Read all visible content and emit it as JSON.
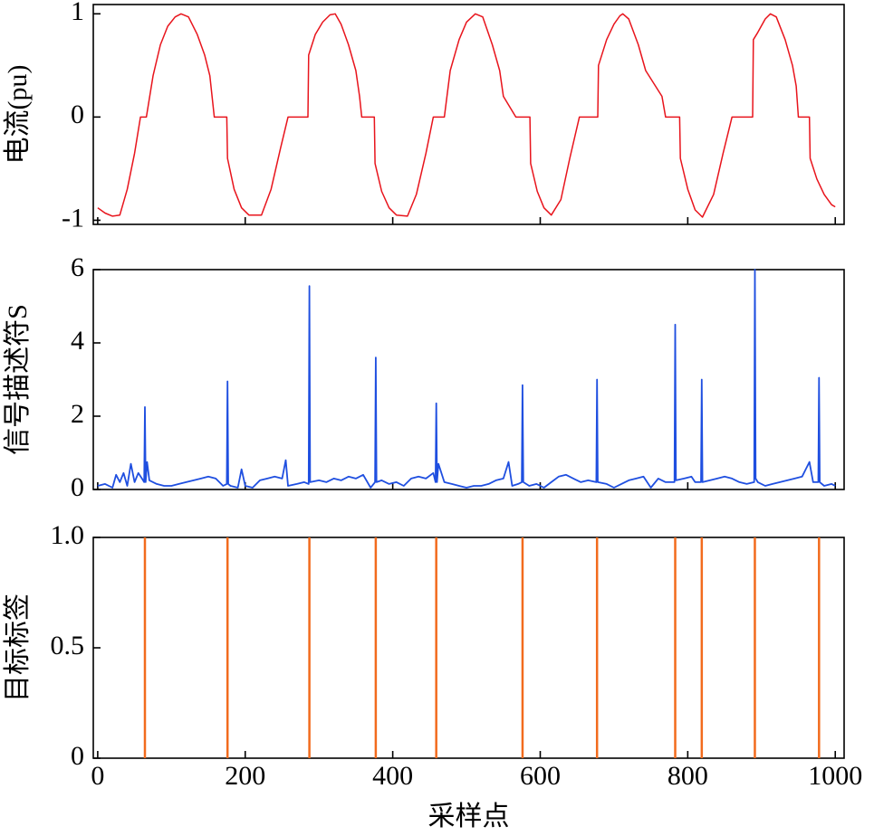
{
  "chart_data": [
    {
      "type": "line",
      "ylabel": "电流(pu)",
      "xlim": [
        -6,
        1012
      ],
      "xticks": [
        0,
        200,
        400,
        600,
        800,
        1000
      ],
      "ylim": [
        -1.04,
        1.09
      ],
      "yticks": [
        -1,
        0,
        1
      ],
      "color": "#e8141c",
      "x": [
        0,
        10,
        20,
        30,
        40,
        50,
        58,
        66,
        75,
        85,
        95,
        105,
        113,
        123,
        135,
        145,
        152,
        158,
        175,
        176,
        185,
        195,
        205,
        222,
        235,
        248,
        258,
        285,
        286,
        295,
        305,
        315,
        322,
        330,
        340,
        350,
        355,
        358,
        375,
        376,
        385,
        395,
        405,
        420,
        432,
        445,
        455,
        470,
        478,
        490,
        500,
        512,
        522,
        535,
        545,
        550,
        567,
        586,
        587,
        596,
        605,
        615,
        628,
        640,
        653,
        678,
        679,
        690,
        700,
        708,
        712,
        720,
        733,
        743,
        765,
        770,
        789,
        790,
        800,
        810,
        820,
        835,
        848,
        860,
        888,
        889,
        895,
        905,
        912,
        920,
        932,
        942,
        947,
        950,
        965,
        966,
        975,
        985,
        995,
        1000
      ],
      "values": [
        -0.88,
        -0.93,
        -0.96,
        -0.95,
        -0.7,
        -0.35,
        0,
        0,
        0.4,
        0.7,
        0.88,
        0.97,
        1.0,
        0.97,
        0.8,
        0.6,
        0.4,
        0,
        0,
        -0.4,
        -0.7,
        -0.88,
        -0.95,
        -0.95,
        -0.7,
        -0.3,
        0,
        0,
        0.6,
        0.8,
        0.92,
        0.99,
        1.0,
        0.9,
        0.7,
        0.45,
        0.2,
        0,
        0,
        -0.45,
        -0.72,
        -0.88,
        -0.95,
        -0.96,
        -0.75,
        -0.35,
        0,
        0,
        0.45,
        0.75,
        0.92,
        1.0,
        0.97,
        0.7,
        0.45,
        0.2,
        0,
        0,
        -0.45,
        -0.72,
        -0.88,
        -0.95,
        -0.8,
        -0.4,
        0,
        0,
        0.5,
        0.75,
        0.9,
        0.98,
        1.0,
        0.95,
        0.7,
        0.45,
        0.2,
        0,
        0,
        -0.4,
        -0.7,
        -0.9,
        -0.97,
        -0.75,
        -0.35,
        0,
        0,
        0.75,
        0.82,
        0.95,
        1.0,
        0.97,
        0.75,
        0.5,
        0.3,
        0,
        0,
        -0.4,
        -0.6,
        -0.75,
        -0.85,
        -0.87
      ]
    },
    {
      "type": "line",
      "ylabel": "信号描述符S",
      "xlim": [
        -6,
        1012
      ],
      "xticks": [
        0,
        200,
        400,
        600,
        800,
        1000
      ],
      "ylim": [
        0,
        6
      ],
      "yticks": [
        0,
        2,
        4,
        6
      ],
      "color": "#1f4fe0",
      "x": [
        0,
        10,
        20,
        25,
        30,
        35,
        40,
        45,
        50,
        55,
        60,
        63,
        64,
        65,
        67,
        70,
        80,
        90,
        100,
        110,
        120,
        130,
        140,
        150,
        160,
        170,
        175,
        176,
        177,
        180,
        190,
        195,
        200,
        210,
        220,
        230,
        240,
        250,
        255,
        258,
        270,
        280,
        286,
        287,
        288,
        300,
        310,
        320,
        330,
        340,
        350,
        360,
        370,
        376,
        377,
        378,
        385,
        395,
        405,
        415,
        425,
        435,
        445,
        455,
        458,
        459,
        460,
        462,
        470,
        480,
        490,
        500,
        510,
        520,
        530,
        540,
        550,
        557,
        562,
        570,
        575,
        576,
        577,
        585,
        595,
        605,
        615,
        625,
        635,
        645,
        655,
        665,
        676,
        677,
        678,
        690,
        700,
        710,
        720,
        730,
        740,
        750,
        760,
        770,
        782,
        783,
        784,
        795,
        805,
        810,
        818,
        819,
        820,
        830,
        840,
        850,
        860,
        870,
        880,
        890,
        891,
        892,
        895,
        905,
        915,
        925,
        935,
        945,
        955,
        965,
        970,
        977,
        978,
        979,
        985,
        995,
        1000
      ],
      "values": [
        0.1,
        0.15,
        0.05,
        0.4,
        0.2,
        0.45,
        0.1,
        0.7,
        0.2,
        0.45,
        0.3,
        0.2,
        2.25,
        0.2,
        0.75,
        0.25,
        0.15,
        0.1,
        0.1,
        0.15,
        0.2,
        0.25,
        0.3,
        0.35,
        0.3,
        0.1,
        0.15,
        2.95,
        0.15,
        0.1,
        0.05,
        0.55,
        0.1,
        0.05,
        0.25,
        0.3,
        0.35,
        0.3,
        0.8,
        0.1,
        0.15,
        0.2,
        0.15,
        5.55,
        0.2,
        0.25,
        0.2,
        0.3,
        0.25,
        0.35,
        0.3,
        0.4,
        0.05,
        0.2,
        3.6,
        0.2,
        0.25,
        0.15,
        0.2,
        0.1,
        0.3,
        0.35,
        0.3,
        0.45,
        0.2,
        2.35,
        0.2,
        0.7,
        0.2,
        0.15,
        0.1,
        0.05,
        0.1,
        0.1,
        0.15,
        0.25,
        0.3,
        0.75,
        0.1,
        0.15,
        0.2,
        2.85,
        0.2,
        0.1,
        0.15,
        0.05,
        0.2,
        0.35,
        0.4,
        0.3,
        0.2,
        0.25,
        0.2,
        3.0,
        0.2,
        0.15,
        0.05,
        0.15,
        0.25,
        0.3,
        0.35,
        0.05,
        0.3,
        0.2,
        0.2,
        4.5,
        0.25,
        0.3,
        0.35,
        0.2,
        0.2,
        3.0,
        0.2,
        0.25,
        0.3,
        0.35,
        0.3,
        0.2,
        0.15,
        0.2,
        6.0,
        0.3,
        0.2,
        0.1,
        0.15,
        0.2,
        0.25,
        0.3,
        0.35,
        0.75,
        0.2,
        0.2,
        3.05,
        0.2,
        0.1,
        0.15,
        0.1
      ]
    },
    {
      "type": "stem",
      "ylabel": "目标标签",
      "xlabel": "采样点",
      "xlim": [
        -6,
        1012
      ],
      "xticks": [
        0,
        200,
        400,
        600,
        800,
        1000
      ],
      "ylim": [
        0,
        1
      ],
      "yticks": [
        0,
        0.5,
        {
          "value": 1,
          "label": "1.0"
        }
      ],
      "color": "#f26b1d",
      "x": [
        64,
        176,
        287,
        377,
        459,
        576,
        677,
        783,
        819,
        891,
        978
      ],
      "values": [
        1,
        1,
        1,
        1,
        1,
        1,
        1,
        1,
        1,
        1,
        1
      ]
    }
  ]
}
